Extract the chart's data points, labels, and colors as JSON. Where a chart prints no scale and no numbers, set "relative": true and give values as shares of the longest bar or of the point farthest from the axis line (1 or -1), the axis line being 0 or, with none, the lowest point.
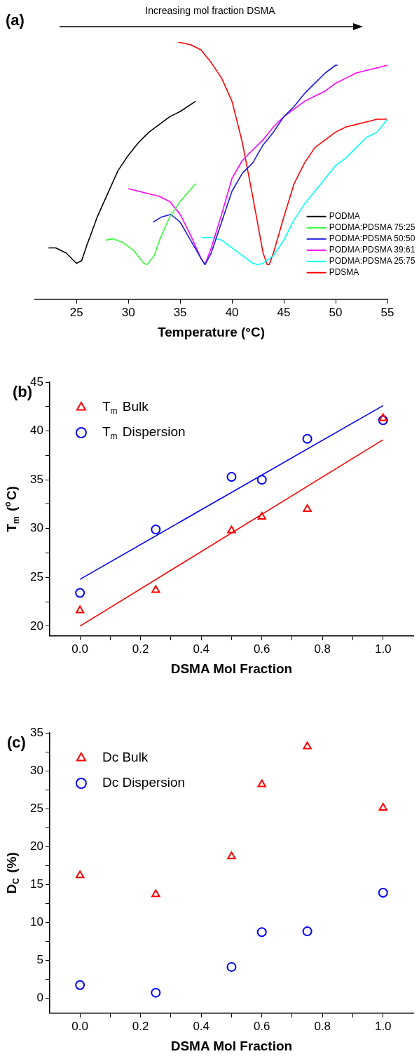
{
  "chart_data": [
    {
      "type": "line",
      "relative": true,
      "xlabel": "Temperature (°C)",
      "annotations": [
        "(a)",
        "Increasing mol fraction DSMA"
      ],
      "xlim": [
        21,
        55
      ],
      "xticks": [
        25,
        30,
        35,
        40,
        45,
        50,
        55
      ],
      "grid": false,
      "legend": "bottom right",
      "marker": "none",
      "line_style": "solid",
      "series": [
        {
          "name": "PODMA",
          "color": "#000000",
          "x": [
            22.3,
            23,
            24,
            25,
            25.5,
            26,
            27,
            28,
            29,
            30,
            31,
            32,
            33,
            34,
            35,
            36.5
          ],
          "values": [
            0.2,
            0.2,
            0.18,
            0.14,
            0.15,
            0.21,
            0.32,
            0.41,
            0.5,
            0.56,
            0.61,
            0.65,
            0.68,
            0.71,
            0.73,
            0.77
          ]
        },
        {
          "name": "PODMA:PDSMA 75:25",
          "color": "#33ff33",
          "x": [
            27.8,
            28.5,
            29.5,
            30.5,
            31.5,
            31.8,
            32.5,
            33,
            34,
            35,
            36.5
          ],
          "values": [
            0.23,
            0.235,
            0.22,
            0.19,
            0.14,
            0.135,
            0.17,
            0.23,
            0.32,
            0.38,
            0.45
          ]
        },
        {
          "name": "PODMA:PDSMA 50:50",
          "color": "#1a1adf",
          "x": [
            32.4,
            33.2,
            34.1,
            35,
            36,
            37,
            37.4,
            38,
            39,
            40,
            41,
            42,
            43,
            44,
            45,
            46,
            47,
            48,
            49,
            50,
            50.2
          ],
          "values": [
            0.3,
            0.32,
            0.33,
            0.3,
            0.23,
            0.16,
            0.135,
            0.18,
            0.3,
            0.42,
            0.49,
            0.53,
            0.6,
            0.65,
            0.71,
            0.75,
            0.8,
            0.84,
            0.88,
            0.91,
            0.91
          ]
        },
        {
          "name": "PODMA:PDSMA 39:61",
          "color": "#ff00ff",
          "x": [
            30,
            31,
            32,
            33,
            34,
            35,
            36,
            37,
            37.4,
            38,
            39,
            40,
            41,
            42,
            43,
            44,
            45,
            46,
            47,
            48,
            49,
            50,
            51,
            52,
            53,
            54,
            55
          ],
          "values": [
            0.43,
            0.42,
            0.41,
            0.4,
            0.38,
            0.33,
            0.25,
            0.16,
            0.135,
            0.2,
            0.33,
            0.47,
            0.54,
            0.58,
            0.62,
            0.67,
            0.71,
            0.74,
            0.77,
            0.79,
            0.81,
            0.84,
            0.86,
            0.88,
            0.89,
            0.9,
            0.91
          ]
        },
        {
          "name": "PODMA:PDSMA 25:75",
          "color": "#00ffff",
          "x": [
            37.1,
            38,
            39,
            40,
            41,
            42,
            42.5,
            43,
            44,
            45,
            46,
            47,
            48,
            49,
            50,
            51,
            52,
            53,
            54,
            55
          ],
          "values": [
            0.24,
            0.24,
            0.23,
            0.2,
            0.17,
            0.14,
            0.135,
            0.14,
            0.17,
            0.23,
            0.31,
            0.37,
            0.42,
            0.47,
            0.52,
            0.55,
            0.59,
            0.63,
            0.65,
            0.7
          ]
        },
        {
          "name": "PDSMA",
          "color": "#ff0000",
          "x": [
            34.8,
            36,
            37,
            38,
            39,
            40,
            41,
            42,
            43,
            43.4,
            43.6,
            44,
            45,
            46,
            47,
            48,
            49,
            50,
            51,
            52,
            53,
            54,
            55
          ],
          "values": [
            1,
            0.99,
            0.97,
            0.92,
            0.86,
            0.77,
            0.61,
            0.4,
            0.18,
            0.135,
            0.135,
            0.18,
            0.32,
            0.45,
            0.53,
            0.59,
            0.62,
            0.65,
            0.67,
            0.68,
            0.69,
            0.7,
            0.7
          ]
        }
      ]
    },
    {
      "type": "scatter",
      "xlabel": "DSMA Mol Fraction",
      "ylabel": "T$_{m}$ ($^{o}$C)",
      "annotations": [
        "(b)"
      ],
      "xlim": [
        -0.1,
        1.1
      ],
      "xticks": [
        {
          "value": 0,
          "label": "0.0"
        },
        {
          "value": 0.1,
          "label": null
        },
        {
          "value": 0.2,
          "label": "0.2"
        },
        {
          "value": 0.3,
          "label": null
        },
        {
          "value": 0.4,
          "label": "0.4"
        },
        {
          "value": 0.5,
          "label": null
        },
        {
          "value": 0.6,
          "label": "0.6"
        },
        {
          "value": 0.7,
          "label": null
        },
        {
          "value": 0.8,
          "label": "0.8"
        },
        {
          "value": 0.9,
          "label": null
        },
        {
          "value": 1,
          "label": "1.0"
        }
      ],
      "ylim": [
        19,
        45
      ],
      "yticks": [
        20,
        {
          "value": 22.5,
          "label": null
        },
        25,
        {
          "value": 27.5,
          "label": null
        },
        30,
        {
          "value": 32.5,
          "label": null
        },
        35,
        {
          "value": 37.5,
          "label": null
        },
        40,
        {
          "value": 42.5,
          "label": null
        },
        45
      ],
      "grid": false,
      "legend": "top left",
      "series": [
        {
          "name": "T$_{m}$ Bulk",
          "color": "#ff0000",
          "marker": "triangle",
          "x": [
            0,
            0.25,
            0.5,
            0.6,
            0.75,
            1
          ],
          "values": [
            21.6,
            23.7,
            29.8,
            31.2,
            32.0,
            41.3
          ]
        },
        {
          "name": "T$_{m}$ Dispersion",
          "color": "#0000ff",
          "marker": "circle",
          "x": [
            0,
            0.25,
            0.5,
            0.6,
            0.75,
            1
          ],
          "values": [
            23.4,
            29.9,
            35.3,
            35.0,
            39.2,
            41.1
          ]
        },
        {
          "type": "line",
          "color": "#0000ff",
          "marker": "none",
          "x": [
            0,
            1
          ],
          "values": [
            24.8,
            42.6
          ]
        },
        {
          "type": "line",
          "color": "#ff0000",
          "marker": "none",
          "x": [
            0,
            1
          ],
          "values": [
            20.0,
            39.1
          ]
        }
      ]
    },
    {
      "type": "scatter",
      "xlabel": "DSMA Mol Fraction",
      "ylabel": "D$_{C}$ (%)",
      "annotations": [
        "(c)"
      ],
      "xlim": [
        -0.1,
        1.1
      ],
      "xticks": [
        {
          "value": 0,
          "label": "0.0"
        },
        {
          "value": 0.1,
          "label": null
        },
        {
          "value": 0.2,
          "label": "0.2"
        },
        {
          "value": 0.3,
          "label": null
        },
        {
          "value": 0.4,
          "label": "0.4"
        },
        {
          "value": 0.5,
          "label": null
        },
        {
          "value": 0.6,
          "label": "0.6"
        },
        {
          "value": 0.7,
          "label": null
        },
        {
          "value": 0.8,
          "label": "0.8"
        },
        {
          "value": 0.9,
          "label": null
        },
        {
          "value": 1,
          "label": "1.0"
        }
      ],
      "ylim": [
        -2,
        35
      ],
      "yticks": [
        0,
        {
          "value": 2.5,
          "label": null
        },
        5,
        {
          "value": 7.5,
          "label": null
        },
        10,
        {
          "value": 12.5,
          "label": null
        },
        15,
        {
          "value": 17.5,
          "label": null
        },
        20,
        {
          "value": 22.5,
          "label": null
        },
        25,
        {
          "value": 27.5,
          "label": null
        },
        30,
        {
          "value": 32.5,
          "label": null
        },
        35
      ],
      "grid": false,
      "legend": "top left",
      "series": [
        {
          "name": "Dc Bulk",
          "color": "#ff0000",
          "marker": "triangle",
          "x": [
            0,
            0.25,
            0.5,
            0.6,
            0.75,
            1
          ],
          "values": [
            16.2,
            13.7,
            18.7,
            28.2,
            33.2,
            25.1
          ]
        },
        {
          "name": "Dc Dispersion",
          "color": "#0000ff",
          "marker": "circle",
          "x": [
            0,
            0.25,
            0.5,
            0.6,
            0.75,
            1
          ],
          "values": [
            1.7,
            0.7,
            4.1,
            8.7,
            8.8,
            13.9
          ]
        }
      ]
    }
  ]
}
